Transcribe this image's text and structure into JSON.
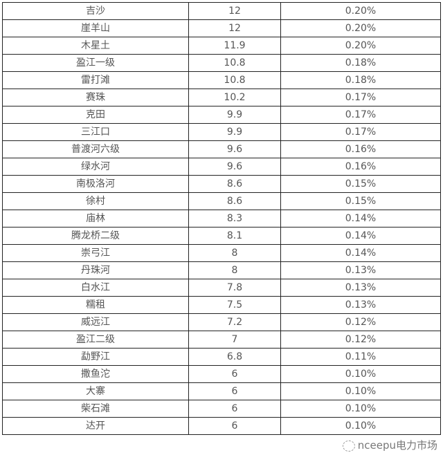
{
  "rows": [
    [
      "吉沙",
      "12",
      "0.20%"
    ],
    [
      "崖羊山",
      "12",
      "0.20%"
    ],
    [
      "木星土",
      "11.9",
      "0.20%"
    ],
    [
      "盈江一级",
      "10.8",
      "0.18%"
    ],
    [
      "雷打滩",
      "10.8",
      "0.18%"
    ],
    [
      "赛珠",
      "10.2",
      "0.17%"
    ],
    [
      "克田",
      "9.9",
      "0.17%"
    ],
    [
      "三江口",
      "9.9",
      "0.17%"
    ],
    [
      "普渡河六级",
      "9.6",
      "0.16%"
    ],
    [
      "绿水河",
      "9.6",
      "0.16%"
    ],
    [
      "南极洛河",
      "8.6",
      "0.15%"
    ],
    [
      "徐村",
      "8.6",
      "0.15%"
    ],
    [
      "庙林",
      "8.3",
      "0.14%"
    ],
    [
      "腾龙桥二级",
      "8.1",
      "0.14%"
    ],
    [
      "崇弓江",
      "8",
      "0.14%"
    ],
    [
      "丹珠河",
      "8",
      "0.13%"
    ],
    [
      "白水江",
      "7.8",
      "0.13%"
    ],
    [
      "糯租",
      "7.5",
      "0.13%"
    ],
    [
      "威远江",
      "7.2",
      "0.12%"
    ],
    [
      "盈江二级",
      "7",
      "0.12%"
    ],
    [
      "勐野江",
      "6.8",
      "0.11%"
    ],
    [
      "撒鱼沱",
      "6",
      "0.10%"
    ],
    [
      "大寨",
      "6",
      "0.10%"
    ],
    [
      "柴石滩",
      "6",
      "0.10%"
    ],
    [
      "达开",
      "6",
      "0.10%"
    ]
  ],
  "watermark": "nceepu电力市场"
}
